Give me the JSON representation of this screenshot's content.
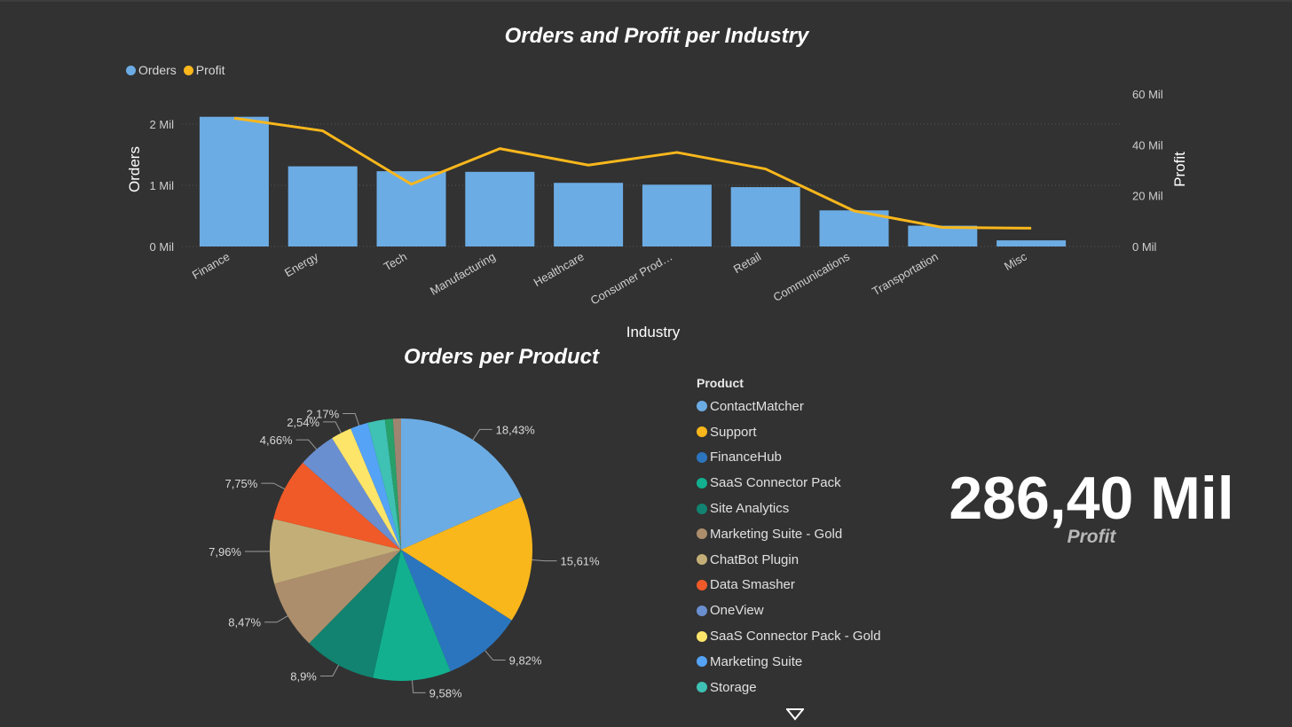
{
  "combo": {
    "title": "Orders and Profit per Industry",
    "legend": [
      {
        "label": "Orders",
        "color": "#6cace4"
      },
      {
        "label": "Profit",
        "color": "#f9b71c"
      }
    ]
  },
  "pie": {
    "title": "Orders per Product",
    "legend_title": "Product"
  },
  "kpi": {
    "value": "286,40 Mil",
    "label": "Profit"
  },
  "chart_data": [
    {
      "type": "bar",
      "subtype": "bar-line-combo",
      "title": "Orders and Profit per Industry",
      "xlabel": "Industry",
      "ylabel": "Orders",
      "y2label": "Profit",
      "categories": [
        "Finance",
        "Energy",
        "Tech",
        "Manufacturing",
        "Healthcare",
        "Consumer Prod…",
        "Retail",
        "Communications",
        "Transportation",
        "Misc"
      ],
      "series": [
        {
          "name": "Orders",
          "type": "bar",
          "axis": "left",
          "color": "#6cace4",
          "values": [
            2.12,
            1.31,
            1.23,
            1.22,
            1.04,
            1.01,
            0.97,
            0.59,
            0.34,
            0.1
          ]
        },
        {
          "name": "Profit",
          "type": "line",
          "axis": "right",
          "color": "#f9b71c",
          "values": [
            50.5,
            45.5,
            24.5,
            38.5,
            32,
            37,
            30.5,
            14,
            7.5,
            7.2
          ]
        }
      ],
      "ylim": [
        0,
        2.5
      ],
      "yticks": [
        {
          "v": 0,
          "label": "0 Mil"
        },
        {
          "v": 1,
          "label": "1 Mil"
        },
        {
          "v": 2,
          "label": "2 Mil"
        }
      ],
      "y2lim": [
        0,
        60
      ],
      "y2ticks": [
        {
          "v": 0,
          "label": "0 Mil"
        },
        {
          "v": 20,
          "label": "20 Mil"
        },
        {
          "v": 40,
          "label": "40 Mil"
        },
        {
          "v": 60,
          "label": "60 Mil"
        }
      ],
      "grid": true,
      "legend_position": "top-left"
    },
    {
      "type": "pie",
      "title": "Orders per Product",
      "legend_title": "Product",
      "slices": [
        {
          "label": "ContactMatcher",
          "value": 18.43,
          "display": "18,43%",
          "color": "#6cace4"
        },
        {
          "label": "Support",
          "value": 15.61,
          "display": "15,61%",
          "color": "#f9b71c"
        },
        {
          "label": "FinanceHub",
          "value": 9.82,
          "display": "9,82%",
          "color": "#2b75bf"
        },
        {
          "label": "SaaS Connector Pack",
          "value": 9.58,
          "display": "9,58%",
          "color": "#12b08f"
        },
        {
          "label": "Site Analytics",
          "value": 8.9,
          "display": "8,9%",
          "color": "#118370"
        },
        {
          "label": "Marketing Suite - Gold",
          "value": 8.47,
          "display": "8,47%",
          "color": "#ad8e6c"
        },
        {
          "label": "ChatBot Plugin",
          "value": 7.96,
          "display": "7,96%",
          "color": "#c3ae78"
        },
        {
          "label": "Data Smasher",
          "value": 7.75,
          "display": "7,75%",
          "color": "#f05a28"
        },
        {
          "label": "OneView",
          "value": 4.66,
          "display": "4,66%",
          "color": "#6a8fd0"
        },
        {
          "label": "SaaS Connector Pack - Gold",
          "value": 2.54,
          "display": "2,54%",
          "color": "#fde56a"
        },
        {
          "label": "Marketing Suite",
          "value": 2.17,
          "display": "2,17%",
          "color": "#55a3f6"
        },
        {
          "label": "Storage",
          "value": 2.13,
          "display": "",
          "color": "#3fc1b4"
        },
        {
          "label": "",
          "value": 0.98,
          "display": "",
          "color": "#27a06a"
        },
        {
          "label": "",
          "value": 0.99,
          "display": "",
          "color": "#9e8572"
        }
      ],
      "visible_legend_count": 12
    }
  ]
}
